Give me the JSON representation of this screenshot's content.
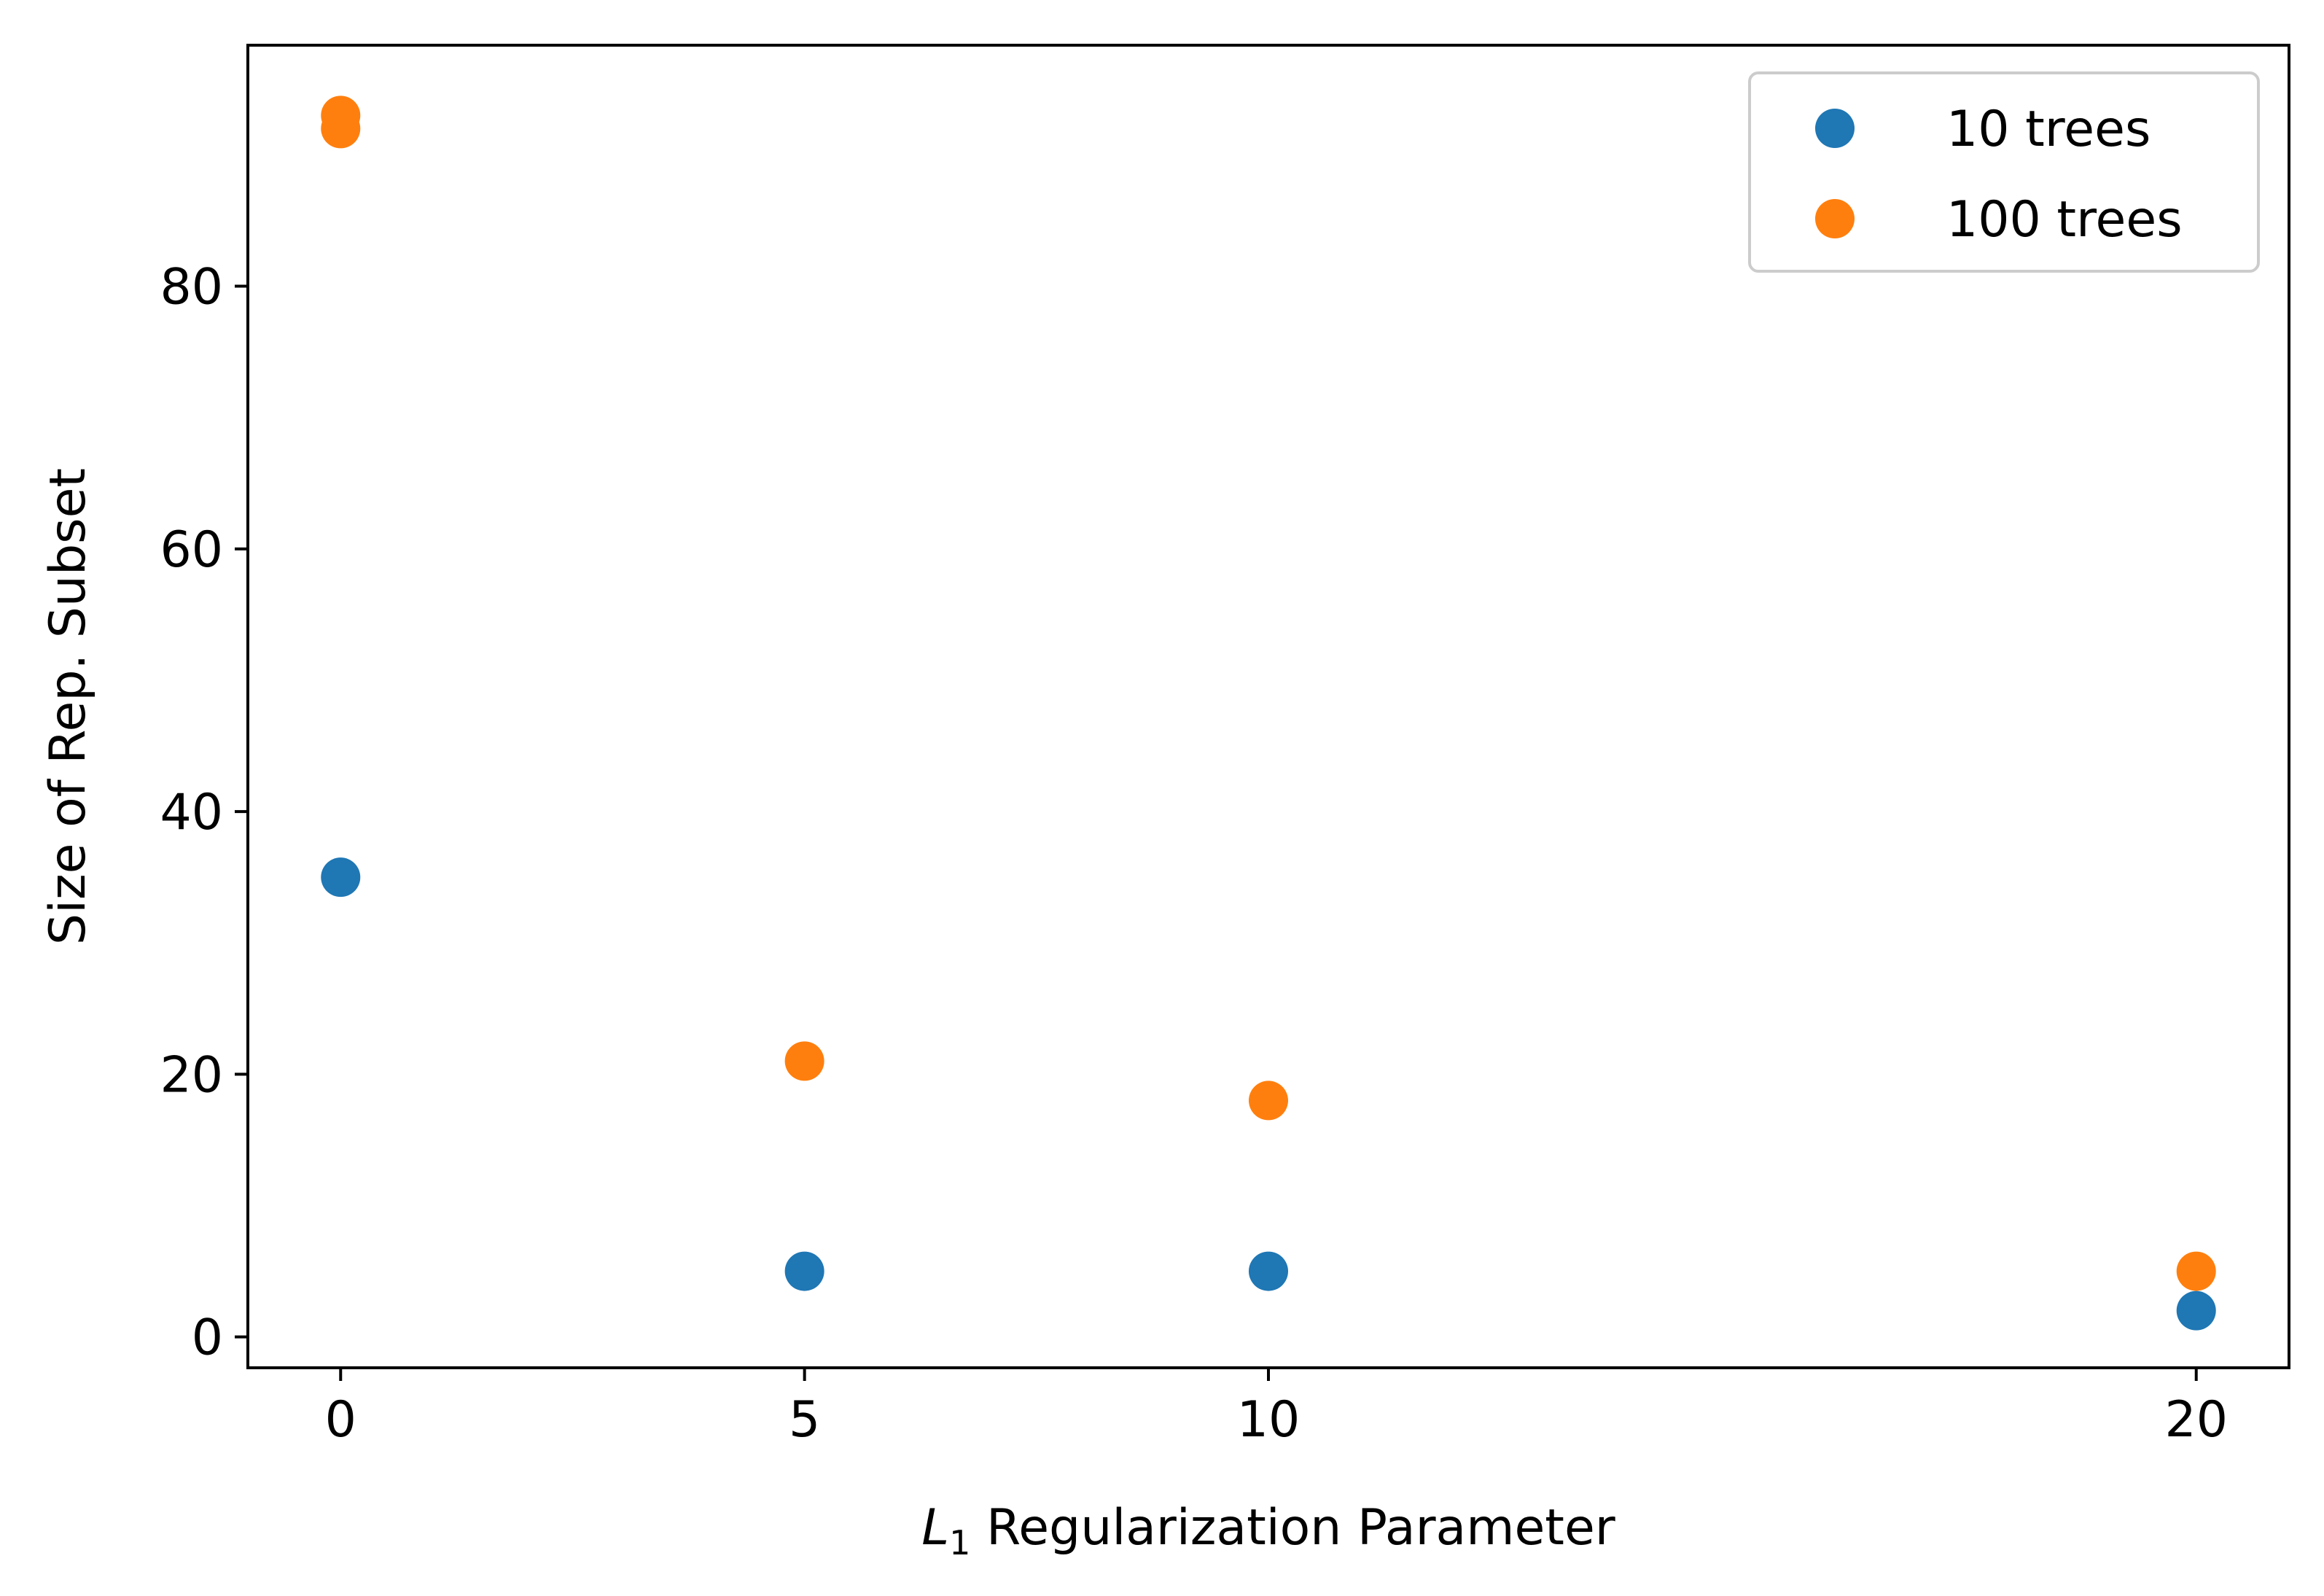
{
  "chart_data": {
    "type": "scatter",
    "xlabel_math": "L",
    "xlabel_sub": "1",
    "xlabel_rest": " Regularization Parameter",
    "ylabel": "Size of Rep. Subset",
    "xlim": [
      -1,
      21
    ],
    "ylim": [
      -2.35,
      98.35
    ],
    "xticks": [
      0,
      5,
      10,
      20
    ],
    "yticks": [
      0,
      20,
      40,
      60,
      80
    ],
    "grid": false,
    "legend_position": "top-right",
    "series": [
      {
        "name": "10 trees",
        "color": "#1f77b4",
        "points": [
          {
            "x": 0,
            "y": 35
          },
          {
            "x": 5,
            "y": 5
          },
          {
            "x": 10,
            "y": 5
          },
          {
            "x": 20,
            "y": 2
          }
        ]
      },
      {
        "name": "100 trees",
        "color": "#ff7f0e",
        "points": [
          {
            "x": 0,
            "y": 93
          },
          {
            "x": 0,
            "y": 92
          },
          {
            "x": 5,
            "y": 21
          },
          {
            "x": 10,
            "y": 18
          },
          {
            "x": 20,
            "y": 5
          }
        ]
      }
    ]
  }
}
